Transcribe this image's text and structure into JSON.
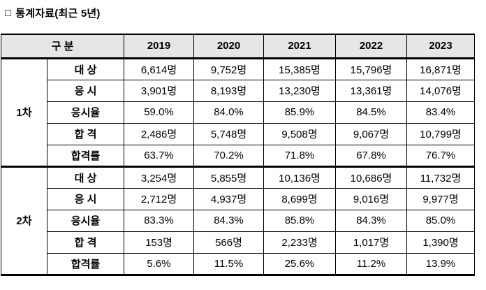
{
  "page": {
    "bullet_icon": "□",
    "title": "통계자료(최근 5년)"
  },
  "table": {
    "header": {
      "group_label": "구 분",
      "years": [
        "2019",
        "2020",
        "2021",
        "2022",
        "2023"
      ]
    },
    "sections": [
      {
        "label": "1차",
        "rows": [
          {
            "label": "대 상",
            "values": [
              "6,614명",
              "9,752명",
              "15,385명",
              "15,796명",
              "16,871명"
            ]
          },
          {
            "label": "응 시",
            "values": [
              "3,901명",
              "8,193명",
              "13,230명",
              "13,361명",
              "14,076명"
            ]
          },
          {
            "label": "응시율",
            "values": [
              "59.0%",
              "84.0%",
              "85.9%",
              "84.5%",
              "83.4%"
            ]
          },
          {
            "label": "합 격",
            "values": [
              "2,486명",
              "5,748명",
              "9,508명",
              "9,067명",
              "10,799명"
            ]
          },
          {
            "label": "합격률",
            "values": [
              "63.7%",
              "70.2%",
              "71.8%",
              "67.8%",
              "76.7%"
            ]
          }
        ]
      },
      {
        "label": "2차",
        "rows": [
          {
            "label": "대 상",
            "values": [
              "3,254명",
              "5,855명",
              "10,136명",
              "10,686명",
              "11,732명"
            ]
          },
          {
            "label": "응 시",
            "values": [
              "2,712명",
              "4,937명",
              "8,699명",
              "9,016명",
              "9,977명"
            ]
          },
          {
            "label": "응시율",
            "values": [
              "83.3%",
              "84.3%",
              "85.8%",
              "84.3%",
              "85.0%"
            ]
          },
          {
            "label": "합 격",
            "values": [
              "153명",
              "566명",
              "2,233명",
              "1,017명",
              "1,390명"
            ]
          },
          {
            "label": "합격률",
            "values": [
              "5.6%",
              "11.5%",
              "25.6%",
              "11.2%",
              "13.9%"
            ]
          }
        ]
      }
    ],
    "colors": {
      "header_bg": "#e6e6e6",
      "border": "#000000",
      "text": "#000000"
    }
  }
}
